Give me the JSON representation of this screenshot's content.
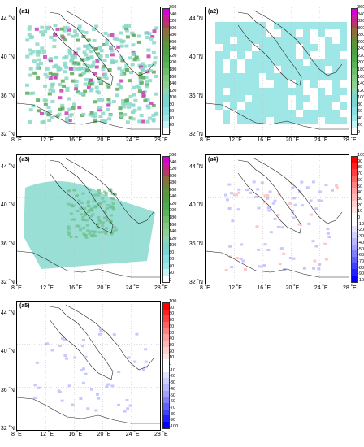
{
  "panels": [
    {
      "label": "(a1)",
      "scale": "prec"
    },
    {
      "label": "(a2)",
      "scale": "prec"
    },
    {
      "label": "(a3)",
      "scale": "prec"
    },
    {
      "label": "(a4)",
      "scale": "diff"
    },
    {
      "label": "(a5)",
      "scale": "diff"
    }
  ],
  "lat_ticks": [
    "44 ˚N",
    "40 ˚N",
    "36 ˚N",
    "32 ˚N"
  ],
  "lon_ticks": [
    "8 ˚E",
    "12 ˚E",
    "16 ˚E",
    "20 ˚E",
    "24 ˚E",
    "28 ˚E"
  ],
  "colorbar_precip": {
    "ticks": [
      "360",
      "340",
      "320",
      "300",
      "280",
      "260",
      "240",
      "220",
      "200",
      "180",
      "160",
      "140",
      "120",
      "100",
      "80",
      "60",
      "40",
      "20",
      "0"
    ],
    "colors": [
      "#d400d4",
      "#c81e96",
      "#b43c64",
      "#8c6e3c",
      "#6e823c",
      "#5a963c",
      "#4ea046",
      "#50aa50",
      "#5ab45a",
      "#6ebe6e",
      "#82c882",
      "#8fd08f",
      "#8fd6b0",
      "#7dd4c8",
      "#7ad6d6",
      "#8ae0e0",
      "#a0e8e8",
      "#c8f4f4",
      "#ffffff"
    ]
  },
  "colorbar_diff": {
    "ticks": [
      "100",
      "90",
      "80",
      "70",
      "60",
      "50",
      "40",
      "30",
      "20",
      "10",
      "0",
      "-10",
      "-20",
      "-30",
      "-40",
      "-50",
      "-60",
      "-70",
      "-80",
      "-90",
      "-100"
    ],
    "colors": [
      "#ff0000",
      "#ff2020",
      "#ff4040",
      "#ff6060",
      "#ff8080",
      "#ffa0a0",
      "#ffb8b8",
      "#ffd0d0",
      "#ffe4e4",
      "#ffffff",
      "#ffffff",
      "#e4e4ff",
      "#d0d0ff",
      "#b8b8ff",
      "#a0a0ff",
      "#8080ff",
      "#6060ff",
      "#4040ff",
      "#2020ff",
      "#0000ff"
    ]
  }
}
